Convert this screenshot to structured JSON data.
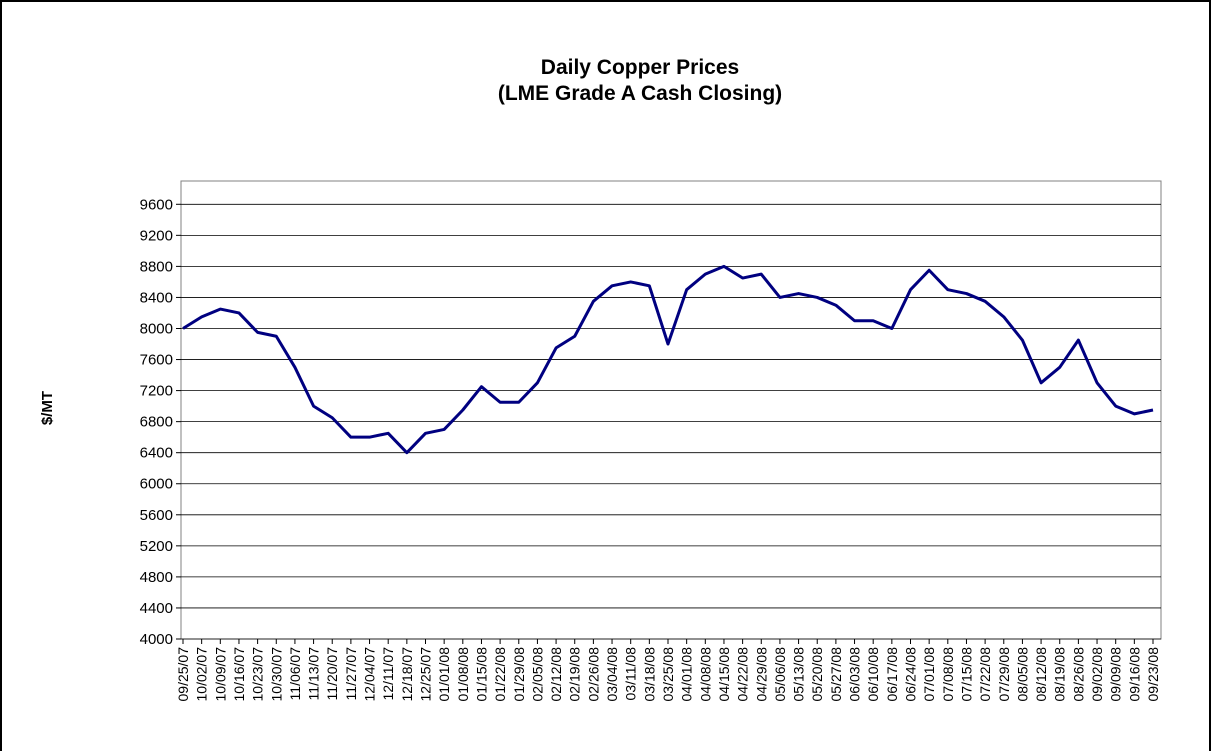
{
  "chart_data": {
    "type": "line",
    "title": "Daily Copper Prices",
    "subtitle": "(LME Grade A Cash Closing)",
    "y_label": "$/MT",
    "categories": [
      "09/25/07",
      "10/02/07",
      "10/09/07",
      "10/16/07",
      "10/23/07",
      "10/30/07",
      "11/06/07",
      "11/13/07",
      "11/20/07",
      "11/27/07",
      "12/04/07",
      "12/11/07",
      "12/18/07",
      "12/25/07",
      "01/01/08",
      "01/08/08",
      "01/15/08",
      "01/22/08",
      "01/29/08",
      "02/05/08",
      "02/12/08",
      "02/19/08",
      "02/26/08",
      "03/04/08",
      "03/11/08",
      "03/18/08",
      "03/25/08",
      "04/01/08",
      "04/08/08",
      "04/15/08",
      "04/22/08",
      "04/29/08",
      "05/06/08",
      "05/13/08",
      "05/20/08",
      "05/27/08",
      "06/03/08",
      "06/10/08",
      "06/17/08",
      "06/24/08",
      "07/01/08",
      "07/08/08",
      "07/15/08",
      "07/22/08",
      "07/29/08",
      "08/05/08",
      "08/12/08",
      "08/19/08",
      "08/26/08",
      "09/02/08",
      "09/09/08",
      "09/16/08",
      "09/23/08"
    ],
    "series": [
      {
        "name": "Copper",
        "color": "#000080",
        "values": [
          8000,
          8150,
          8250,
          8200,
          7950,
          7900,
          7500,
          7000,
          6850,
          6600,
          6600,
          6650,
          6400,
          6650,
          6700,
          6950,
          7250,
          7050,
          7050,
          7300,
          7750,
          7900,
          8350,
          8550,
          8600,
          8550,
          7800,
          8500,
          8700,
          8800,
          8650,
          8700,
          8400,
          8450,
          8400,
          8300,
          8100,
          8100,
          8000,
          8500,
          8750,
          8500,
          8450,
          8350,
          8150,
          7850,
          7300,
          7500,
          7850,
          7300,
          7000,
          6900,
          6950
        ]
      }
    ],
    "ylim": [
      4000,
      9900
    ],
    "yticks": [
      4000,
      4400,
      4800,
      5200,
      5600,
      6000,
      6400,
      6800,
      7200,
      7600,
      8000,
      8400,
      8800,
      9200,
      9600
    ],
    "grid": true
  }
}
